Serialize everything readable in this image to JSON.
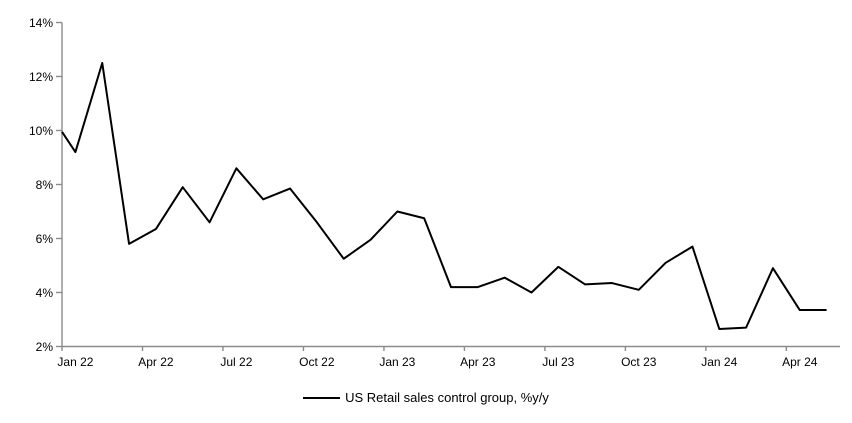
{
  "chart_data": {
    "type": "line",
    "title": "",
    "background": "#ffffff",
    "grid": false,
    "axis_color": "#8c8c8c",
    "line_color": "#000000",
    "line_width": 2,
    "legend": {
      "position": "bottom",
      "entries": [
        "US Retail sales control group, %y/y"
      ]
    },
    "x_axis": {
      "tick_labels": [
        "Jan 22",
        "Apr 22",
        "Jul 22",
        "Oct 22",
        "Jan 23",
        "Apr 23",
        "Jul 23",
        "Oct 23",
        "Jan 24",
        "Apr 24"
      ],
      "tick_interval_months": 3
    },
    "y_axis": {
      "min": 2,
      "max": 14,
      "step": 2,
      "unit": "%",
      "tick_labels": [
        "2%",
        "4%",
        "6%",
        "8%",
        "10%",
        "12%",
        "14%"
      ]
    },
    "categories": [
      "Jan 22",
      "Feb 22",
      "Mar 22",
      "Apr 22",
      "May 22",
      "Jun 22",
      "Jul 22",
      "Aug 22",
      "Sep 22",
      "Oct 22",
      "Nov 22",
      "Dec 22",
      "Jan 23",
      "Feb 23",
      "Mar 23",
      "Apr 23",
      "May 23",
      "Jun 23",
      "Jul 23",
      "Aug 23",
      "Sep 23",
      "Oct 23",
      "Nov 23",
      "Dec 23",
      "Jan 24",
      "Feb 24",
      "Mar 24",
      "Apr 24",
      "May 24"
    ],
    "series": [
      {
        "name": "US Retail sales control group, %y/y",
        "color": "#000000",
        "values": [
          9.2,
          12.5,
          5.8,
          6.35,
          7.9,
          6.6,
          8.6,
          7.45,
          7.85,
          6.6,
          5.25,
          5.95,
          7.0,
          6.75,
          4.2,
          4.2,
          4.55,
          4.0,
          4.95,
          4.3,
          4.35,
          4.1,
          5.1,
          5.7,
          2.65,
          2.7,
          4.9,
          3.35,
          3.35
        ],
        "visible_start_value_at_axis": 9.95
      }
    ]
  }
}
